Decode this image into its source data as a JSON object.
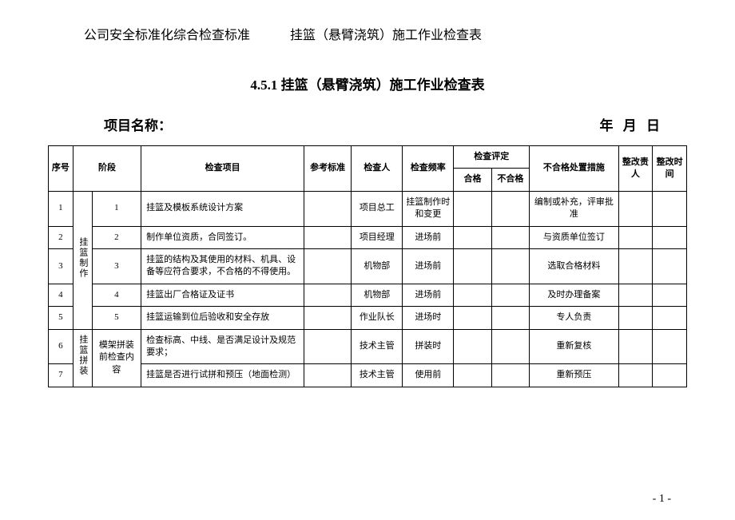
{
  "header": {
    "left": "公司安全标准化综合检查标准",
    "right": "挂篮（悬臂浇筑）施工作业检查表"
  },
  "sectionTitle": "4.5.1 挂篮（悬臂浇筑）施工作业检查表",
  "projectLabel": "项目名称：",
  "dateLabel": "年  月  日",
  "columns": {
    "seq": "序号",
    "stage": "阶段",
    "checkItem": "检查项目",
    "refStd": "参考标准",
    "inspector": "检查人",
    "freq": "检查频率",
    "assessment": "检查评定",
    "pass": "合格",
    "fail": "不合格",
    "measure": "不合格处置措施",
    "person": "整改责人",
    "time": "整改时间"
  },
  "stageGroup1": "挂篮制作",
  "stageGroup2": "挂篮拼装",
  "subStage2": "模架拼装前检查内容",
  "rows": [
    {
      "seq": "1",
      "sub": "1",
      "item": "挂篮及模板系统设计方案",
      "std": "",
      "inspector": "项目总工",
      "freq": "挂篮制作时和变更",
      "measure": "编制或补充，评审批准"
    },
    {
      "seq": "2",
      "sub": "2",
      "item": "制作单位资质，合同签订。",
      "std": "",
      "inspector": "项目经理",
      "freq": "进场前",
      "measure": "与资质单位签订"
    },
    {
      "seq": "3",
      "sub": "3",
      "item": "挂篮的结构及其使用的材料、机具、设备等应符合要求，不合格的不得使用。",
      "std": "",
      "inspector": "机物部",
      "freq": "进场前",
      "measure": "选取合格材料"
    },
    {
      "seq": "4",
      "sub": "4",
      "item": "挂篮出厂合格证及证书",
      "std": "",
      "inspector": "机物部",
      "freq": "进场前",
      "measure": "及时办理备案"
    },
    {
      "seq": "5",
      "sub": "5",
      "item": "挂篮运输到位后验收和安全存放",
      "std": "",
      "inspector": "作业队长",
      "freq": "进场时",
      "measure": "专人负责"
    },
    {
      "seq": "6",
      "sub": "",
      "item": "检查标高、中线、是否满足设计及规范要求；",
      "std": "",
      "inspector": "技术主管",
      "freq": "拼装时",
      "measure": "重新复核"
    },
    {
      "seq": "7",
      "sub": "",
      "item": "挂篮是否进行试拼和预压（地面检测）",
      "std": "",
      "inspector": "技术主管",
      "freq": "使用前",
      "measure": "重新预压"
    }
  ],
  "pageNumber": "- 1 -"
}
